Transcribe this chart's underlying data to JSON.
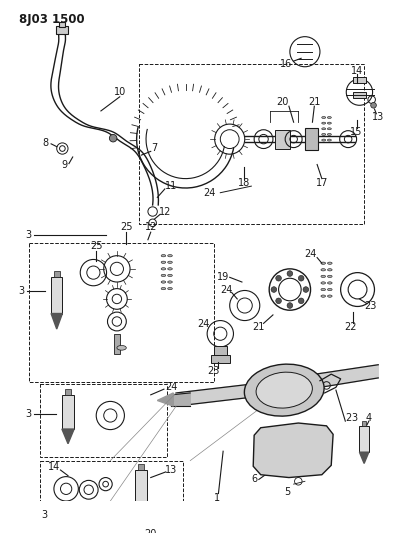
{
  "title": "8J03 1500",
  "bg_color": "#ffffff",
  "line_color": "#1a1a1a",
  "figsize": [
    3.96,
    5.33
  ],
  "dpi": 100
}
